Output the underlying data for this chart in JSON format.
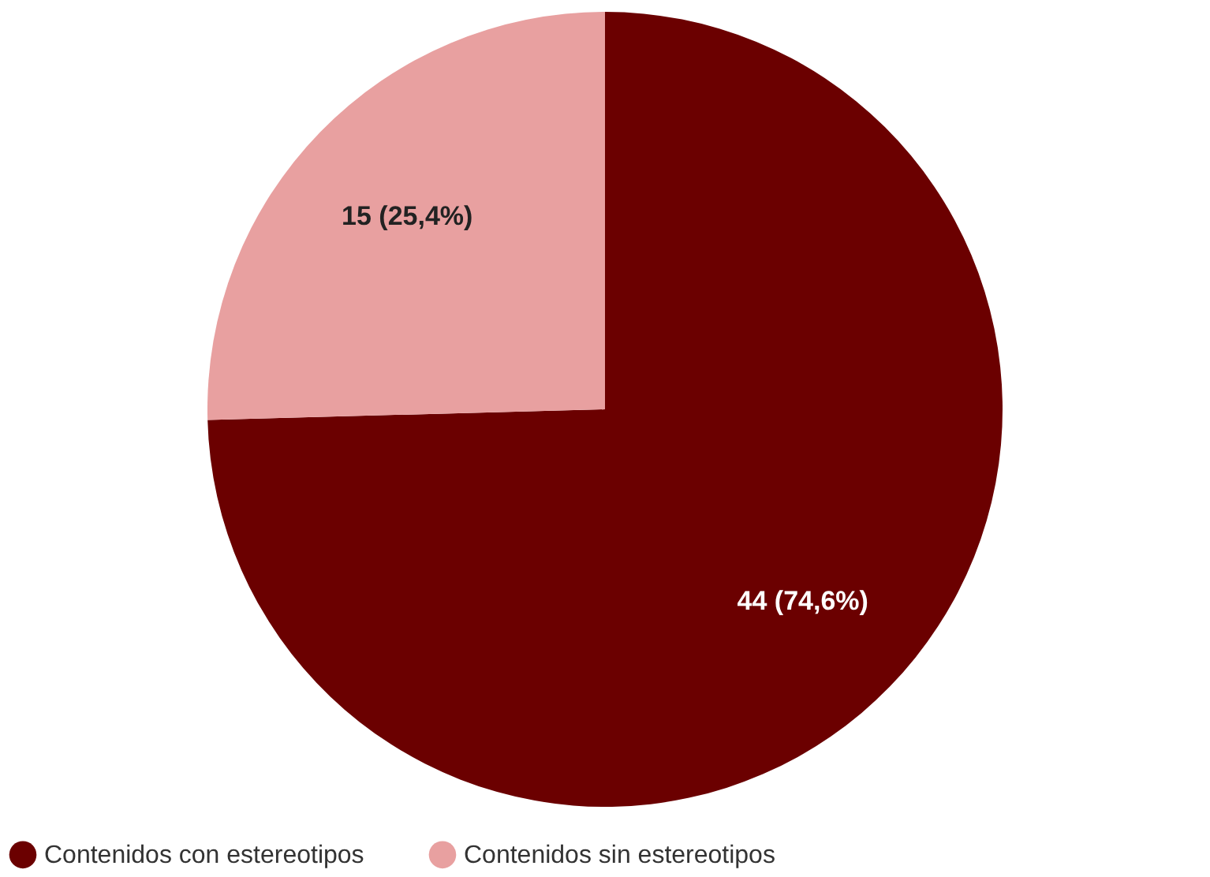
{
  "chart_data": {
    "type": "pie",
    "categories": [
      "Contenidos con estereotipos",
      "Contenidos sin estereotipos"
    ],
    "values": [
      44,
      15
    ],
    "colors": [
      "#6b0000",
      "#e8a0a0"
    ],
    "value_labels": [
      "44 (74,6%)",
      "15 (25,4%)"
    ],
    "legend": "bottom"
  }
}
